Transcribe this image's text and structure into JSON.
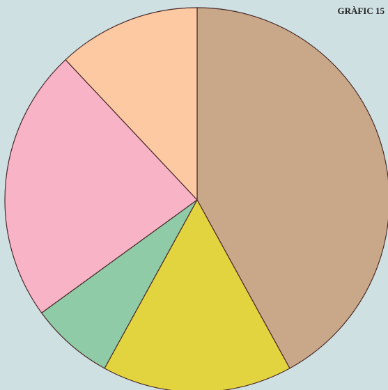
{
  "chart_data": {
    "type": "pie",
    "title": "GRÀFIC 15",
    "values": [
      42,
      16,
      7,
      23,
      12
    ],
    "colors": [
      "#c9a889",
      "#e1d43e",
      "#8fcba6",
      "#f8b4c6",
      "#fcc9a3"
    ],
    "start_angle": 0,
    "direction": "clockwise"
  }
}
